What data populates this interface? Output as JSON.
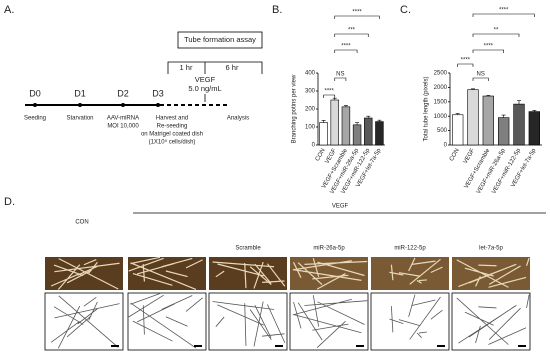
{
  "panel_labels": [
    "A.",
    "B.",
    "C.",
    "D."
  ],
  "timeline": {
    "days": [
      {
        "day": "D0",
        "lines": [
          "Seeding"
        ]
      },
      {
        "day": "D1",
        "lines": [
          "Starvation"
        ]
      },
      {
        "day": "D2",
        "lines": [
          "AAV-miRNA",
          "MOI 10,000"
        ]
      },
      {
        "day": "D3",
        "lines": [
          "Harvest and",
          "Re-seeding",
          "on Matrigel coated dish",
          "(1X10⁵ cells/dish)"
        ]
      }
    ],
    "end": "Analysis",
    "assay": "Tube formation assay",
    "t1": "1 hr",
    "t2": "6 hr",
    "treatment": [
      "VEGF",
      "5.0 ng/mL"
    ]
  },
  "chart_data": [
    {
      "type": "bar",
      "ylabel": "Branching potins per view",
      "categories": [
        "CON",
        "VEGF",
        "VEGF+Scramble",
        "VEGF+miR-26a-5p",
        "VEGF+miR-122-5p",
        "VEGF+let-7a-5p"
      ],
      "values": [
        125,
        250,
        212,
        112,
        150,
        130
      ],
      "errors": [
        12,
        10,
        8,
        12,
        10,
        8
      ],
      "colors": [
        "#ffffff",
        "#d9d9d9",
        "#a6a6a6",
        "#7f7f7f",
        "#595959",
        "#262626"
      ],
      "ylim": [
        0,
        400
      ],
      "yticks": [
        0,
        100,
        200,
        300,
        400
      ],
      "annotations": [
        "****",
        "NS",
        "****",
        "***",
        "****"
      ]
    },
    {
      "type": "bar",
      "ylabel": "Total tube length (pixels)",
      "categories": [
        "CON",
        "VEGF",
        "VEGF+Scramble",
        "VEGF+miR-26a-5p",
        "VEGF+miR-122-5p",
        "VEGF+let-7a-5p"
      ],
      "values": [
        1050,
        1920,
        1700,
        950,
        1420,
        1160
      ],
      "errors": [
        40,
        30,
        20,
        90,
        120,
        40
      ],
      "colors": [
        "#ffffff",
        "#d9d9d9",
        "#a6a6a6",
        "#7f7f7f",
        "#595959",
        "#262626"
      ],
      "ylim": [
        0,
        2500
      ],
      "yticks": [
        0,
        500,
        1000,
        1500,
        2000,
        2500
      ],
      "annotations": [
        "****",
        "NS",
        "****",
        "**",
        "****"
      ]
    }
  ],
  "images": {
    "group": "VEGF",
    "columns": [
      "CON",
      "",
      "Scramble",
      "miR-26a-5p",
      "miR-122-5p",
      "let-7a-5p"
    ]
  }
}
